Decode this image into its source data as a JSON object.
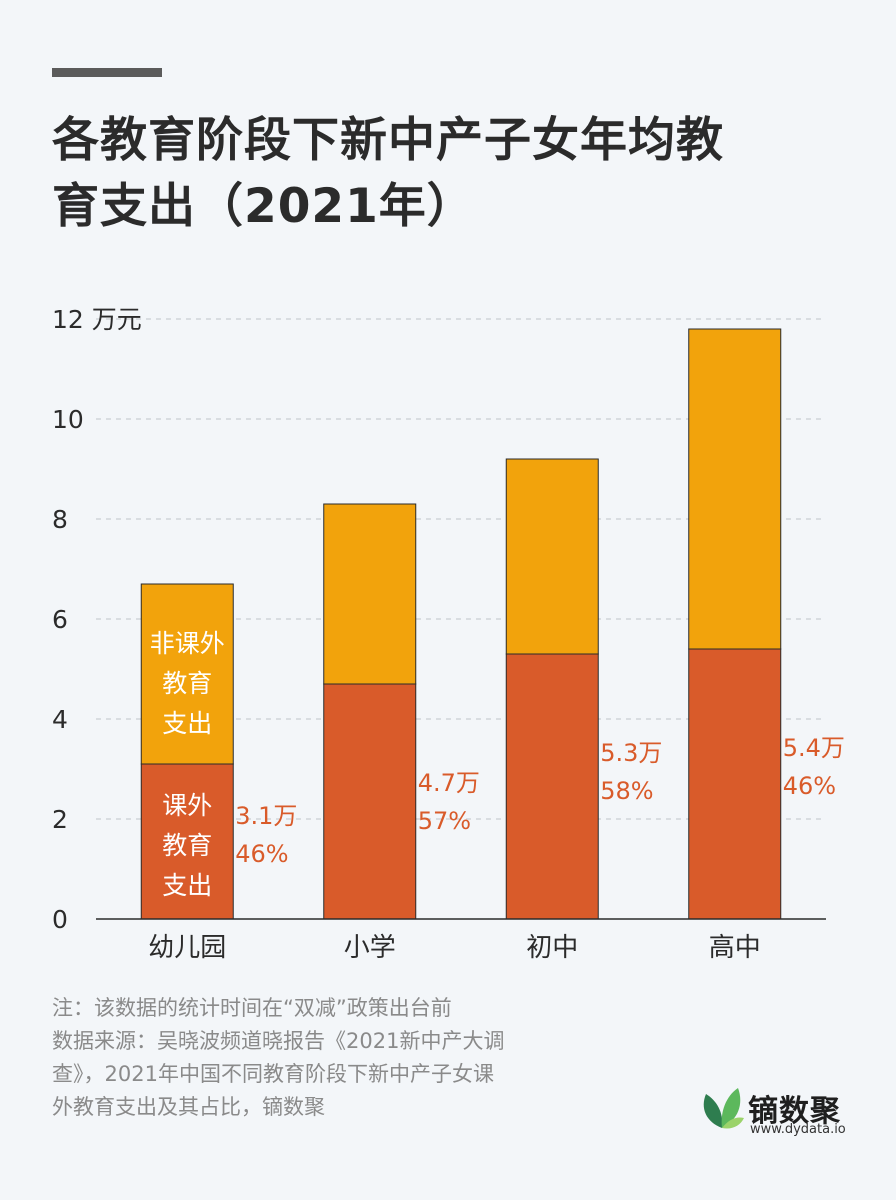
{
  "header": {
    "title_line1": "各教育阶段下新中产子女年均教",
    "title_line2": "育支出（2021年）"
  },
  "footnote": {
    "note": "注：该数据的统计时间在“双减”政策出台前",
    "source_line1": "数据来源：吴晓波频道晓报告《2021新中产大调",
    "source_line2": "查》，2021年中国不同教育阶段下新中产子女课",
    "source_line3": "外教育支出及其占比，镝数聚"
  },
  "logo": {
    "name": "镝数聚",
    "url": "www.dydata.io",
    "icon": "leaf-icon",
    "colors": [
      "#2e7d4f",
      "#5cb85c",
      "#9bd36a"
    ]
  },
  "chart_data": {
    "type": "bar",
    "stacked": true,
    "categories": [
      "幼儿园",
      "小学",
      "初中",
      "高中"
    ],
    "series": [
      {
        "name": "课外教育支出",
        "values": [
          3.1,
          4.7,
          5.3,
          5.4
        ],
        "color": "#d95b2a"
      },
      {
        "name": "非课外教育支出",
        "values": [
          3.6,
          3.6,
          3.9,
          6.4
        ],
        "color": "#f2a30c"
      }
    ],
    "ylim": [
      0,
      12
    ],
    "yticks": [
      "0",
      "2",
      "4",
      "6",
      "8",
      "10",
      "12 万元"
    ],
    "grid": true,
    "annotations": [
      {
        "value": "3.1万",
        "share": "46%"
      },
      {
        "value": "4.7万",
        "share": "57%"
      },
      {
        "value": "5.3万",
        "share": "58%"
      },
      {
        "value": "5.4万",
        "share": "46%"
      }
    ],
    "inner_labels": {
      "bottom": [
        "课外",
        "教育",
        "支出"
      ],
      "top": [
        "非课外",
        "教育",
        "支出"
      ]
    },
    "label_color": "#d95b2a"
  }
}
